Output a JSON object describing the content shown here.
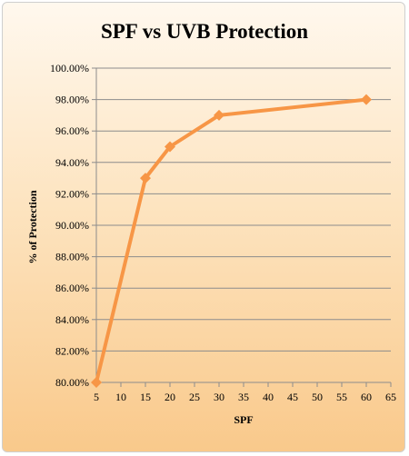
{
  "chart_data": {
    "type": "line",
    "title": "SPF vs UVB Protection",
    "xlabel": "SPF",
    "ylabel": "% of Protection",
    "x_ticks": [
      "5",
      "10",
      "15",
      "20",
      "25",
      "30",
      "35",
      "40",
      "45",
      "50",
      "55",
      "60",
      "65"
    ],
    "y_ticks": [
      "80.00%",
      "82.00%",
      "84.00%",
      "86.00%",
      "88.00%",
      "90.00%",
      "92.00%",
      "94.00%",
      "96.00%",
      "98.00%",
      "100.00%"
    ],
    "xlim": [
      5,
      65
    ],
    "ylim": [
      80,
      100
    ],
    "grid": "horizontal",
    "series": [
      {
        "x": [
          5,
          15,
          20,
          30,
          60
        ],
        "y": [
          80,
          93,
          95,
          97,
          98
        ],
        "color": "#f79646",
        "marker": "diamond"
      }
    ]
  }
}
